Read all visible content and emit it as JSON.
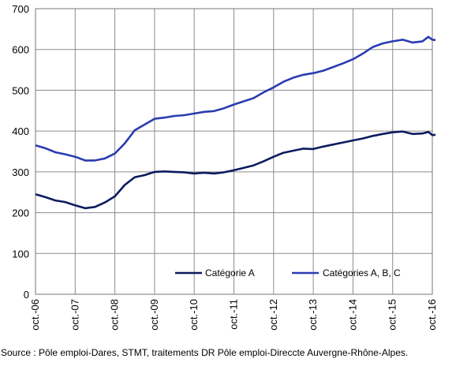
{
  "chart_data": {
    "type": "line",
    "x": [
      "oct.-06",
      "oct.-07",
      "oct.-08",
      "oct.-09",
      "oct.-10",
      "oct.-11",
      "oct.-12",
      "oct.-13",
      "oct.-14",
      "oct.-15",
      "oct.-16"
    ],
    "ylim": [
      0,
      700
    ],
    "yticks": [
      "0",
      "100",
      "200",
      "300",
      "400",
      "500",
      "600",
      "700"
    ],
    "grid": true,
    "legend_position": "bottom-right",
    "series": [
      {
        "name": "Catégorie A",
        "color": "#0d1b5e",
        "values": [
          [
            0,
            245
          ],
          [
            0.25,
            238
          ],
          [
            0.5,
            230
          ],
          [
            0.75,
            226
          ],
          [
            1.0,
            218
          ],
          [
            1.25,
            211
          ],
          [
            1.5,
            214
          ],
          [
            1.75,
            225
          ],
          [
            2.0,
            240
          ],
          [
            2.25,
            268
          ],
          [
            2.5,
            287
          ],
          [
            2.75,
            292
          ],
          [
            3.0,
            300
          ],
          [
            3.25,
            301
          ],
          [
            3.5,
            300
          ],
          [
            3.75,
            299
          ],
          [
            4.0,
            296
          ],
          [
            4.25,
            298
          ],
          [
            4.5,
            296
          ],
          [
            4.75,
            299
          ],
          [
            5.0,
            304
          ],
          [
            5.25,
            310
          ],
          [
            5.5,
            316
          ],
          [
            5.75,
            326
          ],
          [
            6.0,
            337
          ],
          [
            6.25,
            347
          ],
          [
            6.5,
            352
          ],
          [
            6.75,
            357
          ],
          [
            7.0,
            356
          ],
          [
            7.25,
            362
          ],
          [
            7.5,
            367
          ],
          [
            7.75,
            372
          ],
          [
            8.0,
            377
          ],
          [
            8.25,
            382
          ],
          [
            8.5,
            388
          ],
          [
            8.75,
            393
          ],
          [
            9.0,
            397
          ],
          [
            9.25,
            399
          ],
          [
            9.5,
            393
          ],
          [
            9.75,
            394
          ],
          [
            9.9,
            398
          ],
          [
            10.0,
            390
          ],
          [
            10.08,
            391
          ]
        ]
      },
      {
        "name": "Catégories A, B, C",
        "color": "#2a3cb0",
        "values": [
          [
            0,
            365
          ],
          [
            0.25,
            358
          ],
          [
            0.5,
            348
          ],
          [
            0.75,
            343
          ],
          [
            1.0,
            337
          ],
          [
            1.25,
            328
          ],
          [
            1.5,
            328
          ],
          [
            1.75,
            333
          ],
          [
            2.0,
            345
          ],
          [
            2.25,
            370
          ],
          [
            2.5,
            402
          ],
          [
            2.75,
            416
          ],
          [
            3.0,
            430
          ],
          [
            3.25,
            433
          ],
          [
            3.5,
            437
          ],
          [
            3.75,
            439
          ],
          [
            4.0,
            443
          ],
          [
            4.25,
            447
          ],
          [
            4.5,
            449
          ],
          [
            4.75,
            456
          ],
          [
            5.0,
            465
          ],
          [
            5.25,
            473
          ],
          [
            5.5,
            481
          ],
          [
            5.75,
            495
          ],
          [
            6.0,
            507
          ],
          [
            6.25,
            521
          ],
          [
            6.5,
            531
          ],
          [
            6.75,
            538
          ],
          [
            7.0,
            542
          ],
          [
            7.25,
            548
          ],
          [
            7.5,
            557
          ],
          [
            7.75,
            566
          ],
          [
            8.0,
            576
          ],
          [
            8.25,
            590
          ],
          [
            8.5,
            606
          ],
          [
            8.75,
            615
          ],
          [
            9.0,
            620
          ],
          [
            9.25,
            624
          ],
          [
            9.5,
            617
          ],
          [
            9.75,
            620
          ],
          [
            9.9,
            631
          ],
          [
            10.0,
            624
          ],
          [
            10.08,
            623
          ]
        ]
      }
    ]
  },
  "source_text": "Source : Pôle emploi-Dares, STMT, traitements DR Pôle emploi-Direccte Auvergne-Rhône-Alpes."
}
